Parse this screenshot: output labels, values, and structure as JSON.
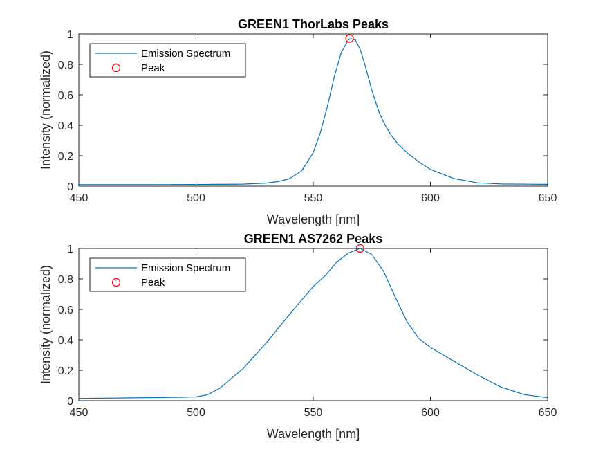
{
  "chart_data": [
    {
      "type": "line",
      "title": "GREEN1 ThorLabs Peaks",
      "xlabel": "Wavelength [nm]",
      "ylabel": "Intensity (normalized)",
      "xlim": [
        450,
        650
      ],
      "ylim": [
        0,
        1
      ],
      "xticks": [
        450,
        500,
        550,
        600,
        650
      ],
      "yticks": [
        0,
        0.2,
        0.4,
        0.6,
        0.8,
        1
      ],
      "xtick_labels": [
        "450",
        "500",
        "550",
        "600",
        "650"
      ],
      "ytick_labels": [
        "0",
        "0.2",
        "0.4",
        "0.6",
        "0.8",
        "1"
      ],
      "grid": false,
      "legend_position": "top-left",
      "series": [
        {
          "name": "Emission Spectrum",
          "color": "#0072BD",
          "x": [
            450,
            480,
            500,
            520,
            530,
            535,
            540,
            545,
            550,
            553,
            556,
            559,
            562,
            565,
            566,
            568,
            570,
            572,
            575,
            578,
            580,
            583,
            586,
            590,
            595,
            600,
            610,
            620,
            630,
            650
          ],
          "y": [
            0.01,
            0.01,
            0.011,
            0.013,
            0.02,
            0.03,
            0.05,
            0.1,
            0.22,
            0.35,
            0.52,
            0.72,
            0.88,
            0.96,
            0.97,
            0.96,
            0.9,
            0.8,
            0.63,
            0.49,
            0.42,
            0.34,
            0.28,
            0.22,
            0.16,
            0.11,
            0.05,
            0.022,
            0.014,
            0.012
          ]
        },
        {
          "name": "Peak",
          "type": "scatter",
          "marker": "circle",
          "color": "#FF0000",
          "x": [
            565.5
          ],
          "y": [
            0.97
          ]
        }
      ]
    },
    {
      "type": "line",
      "title": "GREEN1 AS7262 Peaks",
      "xlabel": "Wavelength [nm]",
      "ylabel": "Intensity (normalized)",
      "xlim": [
        450,
        650
      ],
      "ylim": [
        0,
        1
      ],
      "xticks": [
        450,
        500,
        550,
        600,
        650
      ],
      "yticks": [
        0,
        0.2,
        0.4,
        0.6,
        0.8,
        1
      ],
      "xtick_labels": [
        "450",
        "500",
        "550",
        "600",
        "650"
      ],
      "ytick_labels": [
        "0",
        "0.2",
        "0.4",
        "0.6",
        "0.8",
        "1"
      ],
      "grid": false,
      "legend_position": "top-left",
      "series": [
        {
          "name": "Emission Spectrum",
          "color": "#0072BD",
          "x": [
            450,
            470,
            490,
            500,
            505,
            510,
            520,
            530,
            540,
            550,
            555,
            560,
            565,
            570,
            575,
            580,
            585,
            590,
            595,
            600,
            610,
            620,
            630,
            640,
            650
          ],
          "y": [
            0.015,
            0.018,
            0.022,
            0.025,
            0.04,
            0.08,
            0.21,
            0.38,
            0.57,
            0.75,
            0.82,
            0.91,
            0.97,
            1.0,
            0.96,
            0.85,
            0.68,
            0.52,
            0.41,
            0.35,
            0.26,
            0.17,
            0.09,
            0.04,
            0.02
          ]
        },
        {
          "name": "Peak",
          "type": "scatter",
          "marker": "circle",
          "color": "#FF0000",
          "x": [
            570
          ],
          "y": [
            1.0
          ]
        }
      ]
    }
  ]
}
